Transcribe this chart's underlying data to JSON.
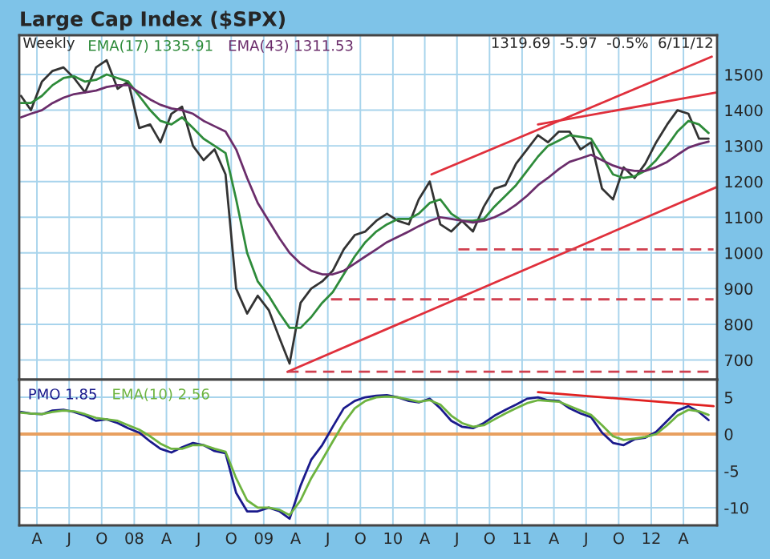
{
  "chart_data": [
    {
      "type": "line",
      "title": "Large Cap Index ($SPX)",
      "annotations": [
        "Weekly",
        "1319.69  -5.97  -0.5%  6/11/12"
      ],
      "legend": "top left",
      "grid": true,
      "tick_labels": "y",
      "xlim": [
        "2007-02-10",
        "2012-07-05"
      ],
      "xticks": [
        {
          "value": "2007-04-01",
          "label": null
        },
        {
          "value": "2007-07-01",
          "label": null
        },
        {
          "value": "2007-10-01",
          "label": null
        },
        {
          "value": "2008-01-01",
          "label": null
        },
        {
          "value": "2008-04-01",
          "label": null
        },
        {
          "value": "2008-07-01",
          "label": null
        },
        {
          "value": "2008-10-01",
          "label": null
        },
        {
          "value": "2009-01-01",
          "label": null
        },
        {
          "value": "2009-04-01",
          "label": null
        },
        {
          "value": "2009-07-01",
          "label": null
        },
        {
          "value": "2009-10-01",
          "label": null
        },
        {
          "value": "2010-01-01",
          "label": null
        },
        {
          "value": "2010-04-01",
          "label": null
        },
        {
          "value": "2010-07-01",
          "label": null
        },
        {
          "value": "2010-10-01",
          "label": null
        },
        {
          "value": "2011-01-01",
          "label": null
        },
        {
          "value": "2011-04-01",
          "label": null
        },
        {
          "value": "2011-07-01",
          "label": null
        },
        {
          "value": "2011-10-01",
          "label": null
        },
        {
          "value": "2012-01-01",
          "label": null
        },
        {
          "value": "2012-04-01",
          "label": null
        }
      ],
      "ylim": [
        645,
        1610
      ],
      "yticks": [
        700,
        800,
        900,
        1000,
        1100,
        1200,
        1300,
        1400,
        1500
      ],
      "x": [
        "2007-02-15",
        "2007-03-15",
        "2007-04-15",
        "2007-05-15",
        "2007-06-15",
        "2007-07-15",
        "2007-08-15",
        "2007-09-15",
        "2007-10-15",
        "2007-11-15",
        "2007-12-15",
        "2008-01-15",
        "2008-02-15",
        "2008-03-15",
        "2008-04-15",
        "2008-05-15",
        "2008-06-15",
        "2008-07-15",
        "2008-08-15",
        "2008-09-15",
        "2008-10-15",
        "2008-11-15",
        "2008-12-15",
        "2009-01-15",
        "2009-02-15",
        "2009-03-15",
        "2009-04-15",
        "2009-05-15",
        "2009-06-15",
        "2009-07-15",
        "2009-08-15",
        "2009-09-15",
        "2009-10-15",
        "2009-11-15",
        "2009-12-15",
        "2010-01-15",
        "2010-02-15",
        "2010-03-15",
        "2010-04-15",
        "2010-05-15",
        "2010-06-15",
        "2010-07-15",
        "2010-08-15",
        "2010-09-15",
        "2010-10-15",
        "2010-11-15",
        "2010-12-15",
        "2011-01-15",
        "2011-02-15",
        "2011-03-15",
        "2011-04-15",
        "2011-05-15",
        "2011-06-15",
        "2011-07-15",
        "2011-08-15",
        "2011-09-15",
        "2011-10-15",
        "2011-11-15",
        "2011-12-15",
        "2012-01-15",
        "2012-02-15",
        "2012-03-15",
        "2012-04-15",
        "2012-05-15",
        "2012-06-11"
      ],
      "series": [
        {
          "color": "#333333",
          "values": [
            1440,
            1400,
            1480,
            1510,
            1520,
            1490,
            1450,
            1520,
            1540,
            1460,
            1480,
            1350,
            1360,
            1310,
            1390,
            1410,
            1300,
            1260,
            1290,
            1220,
            900,
            830,
            880,
            840,
            760,
            690,
            860,
            900,
            920,
            950,
            1010,
            1050,
            1060,
            1090,
            1110,
            1090,
            1080,
            1150,
            1200,
            1080,
            1060,
            1090,
            1060,
            1130,
            1180,
            1190,
            1250,
            1290,
            1330,
            1310,
            1340,
            1340,
            1290,
            1310,
            1180,
            1150,
            1240,
            1210,
            1250,
            1310,
            1360,
            1400,
            1390,
            1320,
            1320
          ]
        },
        {
          "name": "EMA(17) 1335.91",
          "color": "#2e8b3a",
          "values": [
            1420,
            1420,
            1440,
            1470,
            1490,
            1495,
            1480,
            1485,
            1500,
            1490,
            1480,
            1440,
            1400,
            1370,
            1360,
            1380,
            1350,
            1320,
            1300,
            1280,
            1150,
            1000,
            920,
            880,
            830,
            790,
            790,
            820,
            860,
            890,
            940,
            990,
            1030,
            1060,
            1080,
            1095,
            1095,
            1110,
            1140,
            1150,
            1110,
            1090,
            1090,
            1095,
            1130,
            1160,
            1190,
            1230,
            1270,
            1300,
            1315,
            1330,
            1325,
            1320,
            1270,
            1220,
            1210,
            1215,
            1230,
            1260,
            1300,
            1340,
            1370,
            1360,
            1336
          ]
        },
        {
          "name": "EMA(43) 1311.53",
          "color": "#6b2d6b",
          "values": [
            1380,
            1390,
            1400,
            1420,
            1435,
            1445,
            1450,
            1455,
            1465,
            1470,
            1470,
            1450,
            1430,
            1415,
            1405,
            1400,
            1390,
            1370,
            1355,
            1340,
            1290,
            1210,
            1140,
            1090,
            1040,
            1000,
            970,
            950,
            940,
            940,
            950,
            970,
            990,
            1010,
            1030,
            1045,
            1060,
            1075,
            1090,
            1100,
            1095,
            1090,
            1085,
            1090,
            1100,
            1115,
            1135,
            1160,
            1190,
            1210,
            1235,
            1255,
            1265,
            1275,
            1260,
            1245,
            1235,
            1230,
            1230,
            1240,
            1255,
            1275,
            1295,
            1305,
            1312
          ]
        },
        {
          "color": "#e0303c",
          "x": [
            "2009-03-09",
            "2012-07-05"
          ],
          "values": [
            667,
            1185
          ]
        },
        {
          "color": "#e0303c",
          "x": [
            "2010-04-20",
            "2012-06-20"
          ],
          "values": [
            1220,
            1550
          ]
        },
        {
          "color": "#e0303c",
          "x": [
            "2011-02-15",
            "2012-07-05"
          ],
          "values": [
            1360,
            1450
          ]
        },
        {
          "color": "#d04050",
          "line_style": "dashed",
          "x": [
            "2010-07-05",
            "2012-06-25"
          ],
          "values": [
            1010,
            1010
          ]
        },
        {
          "color": "#d04050",
          "line_style": "dashed",
          "x": [
            "2009-07-10",
            "2012-06-25"
          ],
          "values": [
            870,
            870
          ]
        },
        {
          "color": "#d04050",
          "line_style": "dashed",
          "x": [
            "2009-03-09",
            "2012-06-25"
          ],
          "values": [
            667,
            667
          ]
        }
      ]
    },
    {
      "type": "line",
      "legend": "top left",
      "grid": true,
      "xlim": [
        "2007-02-10",
        "2012-07-05"
      ],
      "xticks": [
        {
          "value": "2007-04-01",
          "label": "A"
        },
        {
          "value": "2007-07-01",
          "label": "J"
        },
        {
          "value": "2007-10-01",
          "label": "O"
        },
        {
          "value": "2008-01-01",
          "label": "08"
        },
        {
          "value": "2008-04-01",
          "label": "A"
        },
        {
          "value": "2008-07-01",
          "label": "J"
        },
        {
          "value": "2008-10-01",
          "label": "O"
        },
        {
          "value": "2009-01-01",
          "label": "09"
        },
        {
          "value": "2009-04-01",
          "label": "A"
        },
        {
          "value": "2009-07-01",
          "label": "J"
        },
        {
          "value": "2009-10-01",
          "label": "O"
        },
        {
          "value": "2010-01-01",
          "label": "10"
        },
        {
          "value": "2010-04-01",
          "label": "A"
        },
        {
          "value": "2010-07-01",
          "label": "J"
        },
        {
          "value": "2010-10-01",
          "label": "O"
        },
        {
          "value": "2011-01-01",
          "label": "11"
        },
        {
          "value": "2011-04-01",
          "label": "A"
        },
        {
          "value": "2011-07-01",
          "label": "J"
        },
        {
          "value": "2011-10-01",
          "label": "O"
        },
        {
          "value": "2012-01-01",
          "label": "12"
        },
        {
          "value": "2012-04-01",
          "label": "A"
        }
      ],
      "ylim": [
        -12.4,
        7.4
      ],
      "yticks": [
        {
          "value": -10,
          "label": "-10"
        },
        {
          "value": -5,
          "label": "-5"
        },
        0,
        5
      ],
      "ref_lines": [
        {
          "axis": "y",
          "value": 0,
          "color": "#e8a060"
        }
      ],
      "x": [
        "2007-02-15",
        "2007-03-15",
        "2007-04-15",
        "2007-05-15",
        "2007-06-15",
        "2007-07-15",
        "2007-08-15",
        "2007-09-15",
        "2007-10-15",
        "2007-11-15",
        "2007-12-15",
        "2008-01-15",
        "2008-02-15",
        "2008-03-15",
        "2008-04-15",
        "2008-05-15",
        "2008-06-15",
        "2008-07-15",
        "2008-08-15",
        "2008-09-15",
        "2008-10-15",
        "2008-11-15",
        "2008-12-15",
        "2009-01-15",
        "2009-02-15",
        "2009-03-15",
        "2009-04-15",
        "2009-05-15",
        "2009-06-15",
        "2009-07-15",
        "2009-08-15",
        "2009-09-15",
        "2009-10-15",
        "2009-11-15",
        "2009-12-15",
        "2010-01-15",
        "2010-02-15",
        "2010-03-15",
        "2010-04-15",
        "2010-05-15",
        "2010-06-15",
        "2010-07-15",
        "2010-08-15",
        "2010-09-15",
        "2010-10-15",
        "2010-11-15",
        "2010-12-15",
        "2011-01-15",
        "2011-02-15",
        "2011-03-15",
        "2011-04-15",
        "2011-05-15",
        "2011-06-15",
        "2011-07-15",
        "2011-08-15",
        "2011-09-15",
        "2011-10-15",
        "2011-11-15",
        "2011-12-15",
        "2012-01-15",
        "2012-02-15",
        "2012-03-15",
        "2012-04-15",
        "2012-05-15",
        "2012-06-11"
      ],
      "series": [
        {
          "name": "PMO 1.85",
          "color": "#1a1a8c",
          "values": [
            3,
            2.8,
            2.7,
            3.2,
            3.3,
            3.0,
            2.5,
            1.8,
            2.0,
            1.5,
            0.8,
            0.2,
            -1.0,
            -2.0,
            -2.5,
            -1.8,
            -1.2,
            -1.5,
            -2.3,
            -2.6,
            -8,
            -10.5,
            -10.5,
            -10,
            -10.5,
            -11.5,
            -7,
            -3.5,
            -1.5,
            1,
            3.5,
            4.5,
            5,
            5.2,
            5.3,
            5,
            4.5,
            4.3,
            4.8,
            3.5,
            1.8,
            1,
            0.8,
            1.5,
            2.5,
            3.3,
            4,
            4.8,
            5,
            4.6,
            4.5,
            3.5,
            2.8,
            2.3,
            0.2,
            -1.2,
            -1.5,
            -0.7,
            -0.5,
            0.3,
            1.8,
            3.2,
            3.8,
            3,
            1.9
          ]
        },
        {
          "name": "EMA(10) 2.56",
          "color": "#6db33f",
          "values": [
            2.9,
            2.8,
            2.7,
            3.0,
            3.2,
            3.1,
            2.7,
            2.2,
            2.0,
            1.8,
            1.2,
            0.6,
            -0.3,
            -1.3,
            -2.0,
            -2.0,
            -1.5,
            -1.5,
            -2.0,
            -2.4,
            -6,
            -9,
            -10,
            -10,
            -10.3,
            -11,
            -9,
            -6,
            -3.5,
            -1,
            1.5,
            3.5,
            4.5,
            5,
            5.1,
            5,
            4.7,
            4.4,
            4.6,
            4,
            2.5,
            1.5,
            1,
            1.2,
            2,
            2.8,
            3.5,
            4.2,
            4.6,
            4.5,
            4.4,
            3.8,
            3.2,
            2.6,
            1.2,
            -0.3,
            -0.8,
            -0.6,
            -0.4,
            0,
            1.2,
            2.5,
            3.3,
            3.1,
            2.6
          ]
        },
        {
          "color": "#e02020",
          "x": [
            "2011-02-15",
            "2012-06-25"
          ],
          "values": [
            5.7,
            3.8
          ]
        }
      ]
    }
  ]
}
